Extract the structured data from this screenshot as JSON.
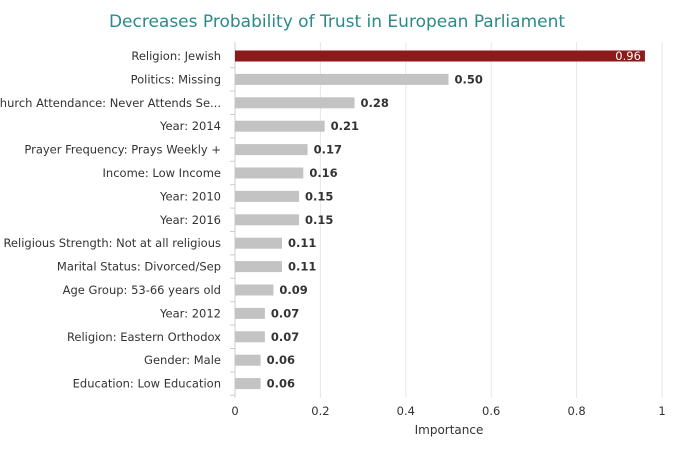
{
  "chart_data": {
    "type": "bar",
    "orientation": "horizontal",
    "title": "Decreases Probability of Trust in European Parliament",
    "xlabel": "Importance",
    "ylabel": "",
    "xlim": [
      0,
      1
    ],
    "xticks": [
      "0",
      "0.2",
      "0.4",
      "0.6",
      "0.8",
      "1"
    ],
    "grid": true,
    "categories": [
      "Religion: Jewish",
      "Politics: Missing",
      "Church Attendance: Never Attends Se...",
      "Year: 2014",
      "Prayer Frequency: Prays Weekly +",
      "Income: Low Income",
      "Year: 2010",
      "Year: 2016",
      "Religious Strength: Not at all religious",
      "Marital Status: Divorced/Sep",
      "Age Group: 53-66 years old",
      "Year: 2012",
      "Religion: Eastern Orthodox",
      "Gender: Male",
      "Education: Low Education"
    ],
    "values": [
      0.96,
      0.5,
      0.28,
      0.21,
      0.17,
      0.16,
      0.15,
      0.15,
      0.11,
      0.11,
      0.09,
      0.07,
      0.07,
      0.06,
      0.06
    ],
    "value_labels": [
      "0.96",
      "0.50",
      "0.28",
      "0.21",
      "0.17",
      "0.16",
      "0.15",
      "0.15",
      "0.11",
      "0.11",
      "0.09",
      "0.07",
      "0.07",
      "0.06",
      "0.06"
    ],
    "colors": {
      "highlight": "#8b1a1a",
      "default": "#c3c3c3",
      "title": "#2a8a8a",
      "grid": "#e6e6e6"
    }
  }
}
